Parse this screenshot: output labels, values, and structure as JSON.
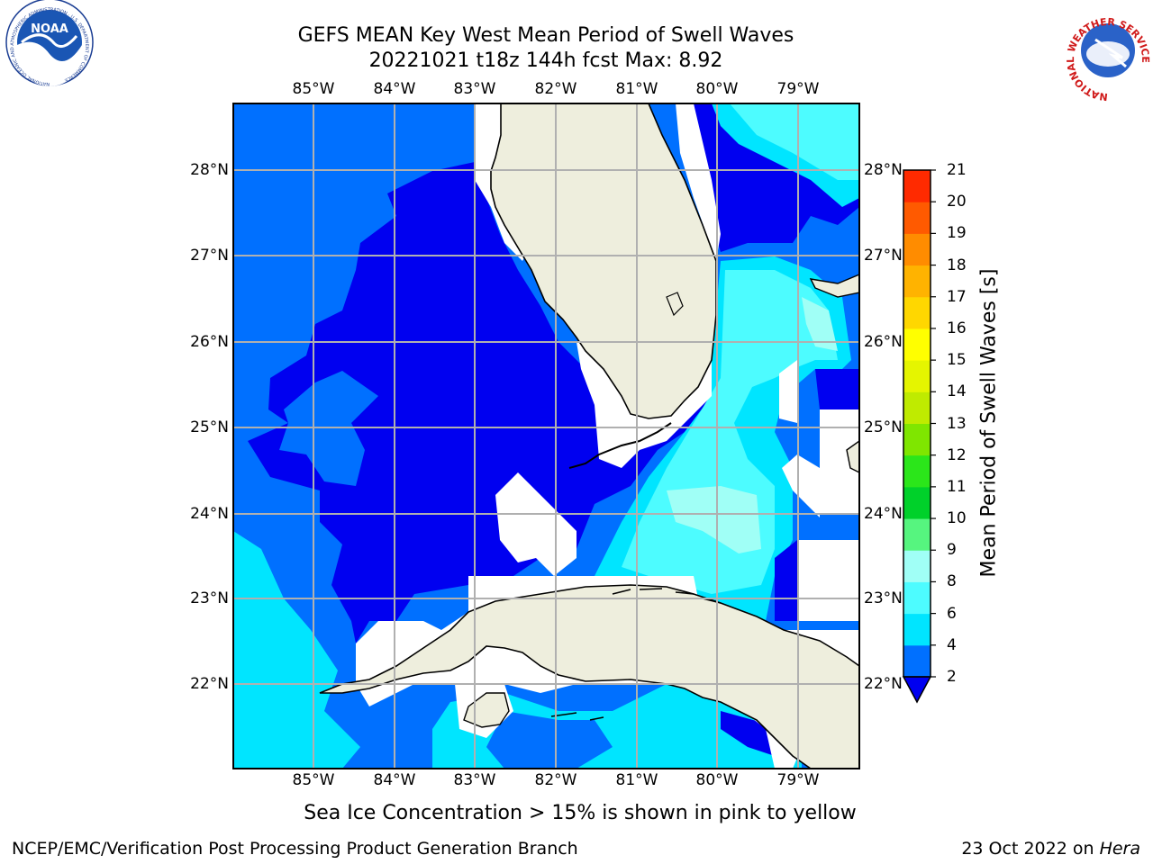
{
  "header": {
    "title_line1": "GEFS MEAN Key West Mean Period of Swell Waves",
    "title_line2": "20221021 t18z 144h fcst   Max: 8.92"
  },
  "logos": {
    "noaa_text": "NOAA",
    "noaa_ring_text": "NATIONAL OCEANIC AND ATMOSPHERIC ADMINISTRATION · U.S. DEPARTMENT OF COMMERCE",
    "nws_ring_text": "NATIONAL WEATHER SERVICE"
  },
  "map": {
    "lon_labels": [
      "85°W",
      "84°W",
      "83°W",
      "82°W",
      "81°W",
      "80°W",
      "79°W"
    ],
    "lat_labels": [
      "28°N",
      "27°N",
      "26°N",
      "25°N",
      "24°N",
      "23°N",
      "22°N"
    ],
    "extent": {
      "lon_min": -86.0,
      "lon_max": -78.3,
      "lat_min": 21.0,
      "lat_max": 28.8
    },
    "land_color": "#eeeedd",
    "no_data_color": "#ffffff"
  },
  "colorbar": {
    "label": "Mean Period of Swell Waves [s]",
    "ticks": [
      "2",
      "4",
      "6",
      "8",
      "9",
      "10",
      "11",
      "12",
      "13",
      "14",
      "15",
      "16",
      "17",
      "18",
      "19",
      "20",
      "21"
    ],
    "colors_bottom_to_top": [
      "#0070ff",
      "#00e5ff",
      "#4dfcff",
      "#a0fff6",
      "#56f57f",
      "#00d12a",
      "#2be61a",
      "#7fe600",
      "#bfeb00",
      "#e5f500",
      "#ffff00",
      "#ffd700",
      "#ffb300",
      "#ff8c00",
      "#ff5a00",
      "#ff2a00"
    ],
    "under_color": "#0000f0"
  },
  "footer": {
    "note": "Sea Ice Concentration > 15% is shown in pink to yellow",
    "credit": "NCEP/EMC/Verification Post Processing Product Generation Branch",
    "date": "23 Oct 2022 on ",
    "machine": "Hera"
  }
}
